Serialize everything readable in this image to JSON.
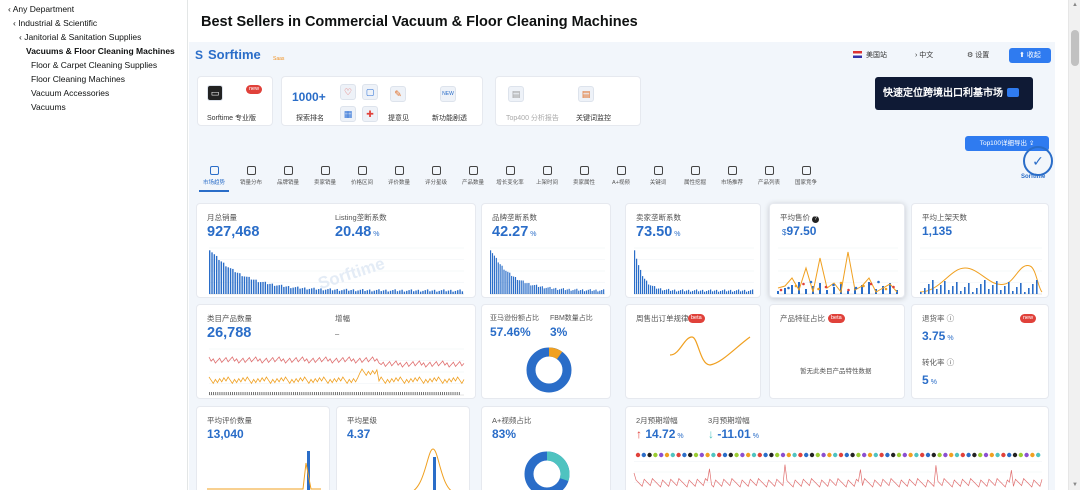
{
  "left_nav": {
    "items": [
      "‹ Any Department",
      "‹ Industrial & Scientific",
      "‹ Janitorial & Sanitation Supplies",
      "Vacuums & Floor Cleaning Machines",
      "Floor & Carpet Cleaning Supplies",
      "Floor Cleaning Machines",
      "Vacuum Accessories",
      "Vacuums"
    ]
  },
  "page": {
    "title": "Best Sellers in Commercial Vacuum & Floor Cleaning Machines"
  },
  "sorftime": {
    "logo": "Sorftime",
    "logo_tag": "Saas",
    "header": {
      "site": "美国站",
      "lang": "中文",
      "settings": "设置",
      "collapse": "收起"
    },
    "tools": {
      "pro": "Sorftime 专业版",
      "pro_badge": "new",
      "keyword_count": "1000+",
      "keyword_label": "探索排名",
      "feedback": "提意见",
      "new_feature": "新功能剧透",
      "new_badge": "NEW",
      "top400": "Top400 分析报告",
      "kw_monitor": "关键词监控"
    },
    "banner": "快速定位跨境出口利基市场",
    "export_button": "Top100详细导出",
    "seal_text": "Sorftime",
    "tabs": [
      "市场趋势",
      "销量分布",
      "品牌销量",
      "卖家销量",
      "价格区间",
      "评价数量",
      "评分星级",
      "产品数量",
      "增长变化率",
      "上架时间",
      "卖家属性",
      "A+视频",
      "关键词",
      "属性挖掘",
      "市场推荐",
      "产品列表",
      "国家竞争"
    ],
    "watermark": "Sorftime"
  },
  "cards": {
    "monthly_sales": {
      "label": "月总销量",
      "value": "927,468"
    },
    "listing_rate": {
      "label": "Listing垄断系数",
      "value": "20.48",
      "unit": "%"
    },
    "brand_rate": {
      "label": "品牌垄断系数",
      "value": "42.27",
      "unit": "%"
    },
    "seller_rate": {
      "label": "卖家垄断系数",
      "value": "73.50",
      "unit": "%"
    },
    "avg_price": {
      "label": "平均售价",
      "currency": "$",
      "value": "97.50"
    },
    "avg_days": {
      "label": "平均上架天数",
      "value": "1,135"
    },
    "product_count": {
      "label": "类目产品数量",
      "value": "26,788"
    },
    "growth": {
      "label": "增幅",
      "value": "–"
    },
    "amazon_share": {
      "label": "亚马逊份额占比",
      "value": "57.46%"
    },
    "fbm_share": {
      "label": "FBM数量占比",
      "value": "3%"
    },
    "weekly_pattern": {
      "label": "周售出订单规律",
      "badge": "beta"
    },
    "product_feature": {
      "label": "产品特征占比",
      "badge": "beta",
      "empty": "暂无此类目产品特性数据"
    },
    "return_rate": {
      "label": "退货率",
      "value": "3.75",
      "unit": "%",
      "badge": "new"
    },
    "conversion": {
      "label": "转化率",
      "value": "5",
      "unit": "%"
    },
    "avg_reviews": {
      "label": "平均评价数量",
      "value": "13,040"
    },
    "avg_stars": {
      "label": "平均星级",
      "value": "4.37"
    },
    "aplus_share": {
      "label": "A+视频占比",
      "value": "83%"
    },
    "feb_growth": {
      "label": "2月预期增幅",
      "arrow": "↑",
      "value": "14.72",
      "unit": "%"
    },
    "mar_growth": {
      "label": "3月预期增幅",
      "arrow": "↓",
      "value": "-11.01",
      "unit": "%"
    }
  },
  "colors": {
    "blue": "#2a6dc8",
    "orange": "#f0a020",
    "red": "#e0413a",
    "teal": "#4fc3c0"
  }
}
